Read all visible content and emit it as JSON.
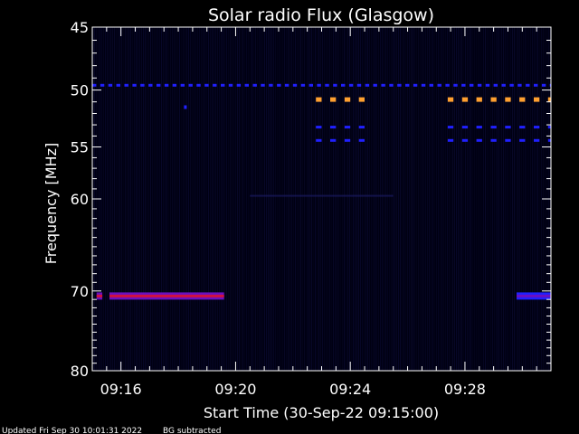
{
  "chart_data": {
    "type": "heatmap",
    "title": "Solar radio Flux (Glasgow)",
    "xlabel": "Start Time (30-Sep-22 09:15:00)",
    "ylabel": "Frequency [MHz]",
    "x_range_minutes_after_start": [
      0,
      16
    ],
    "y_range_mhz": [
      45,
      80
    ],
    "y_scale": "log",
    "x_ticks": [
      {
        "label": "09:16",
        "minute": 1
      },
      {
        "label": "09:20",
        "minute": 5
      },
      {
        "label": "09:24",
        "minute": 9
      },
      {
        "label": "09:28",
        "minute": 13
      }
    ],
    "y_ticks": [
      45,
      50,
      55,
      60,
      70,
      80
    ],
    "colors": {
      "background": "#000012",
      "blue": "#2020ff",
      "orange": "#ffa030",
      "red": "#d01040",
      "purple": "#6a10c0",
      "noise": "#0d0d3a"
    },
    "features": [
      {
        "kind": "dashed",
        "color": "blue",
        "freq": 49.6,
        "x0": 0,
        "x1": 16,
        "dash_min": 0.14,
        "gap_min": 0.14
      },
      {
        "kind": "dashed",
        "color": "orange",
        "freq": 50.8,
        "x0": 7.8,
        "x1": 9.8,
        "dash_min": 0.2,
        "gap_min": 0.3
      },
      {
        "kind": "dashed",
        "color": "orange",
        "freq": 50.8,
        "x0": 12.4,
        "x1": 16,
        "dash_min": 0.2,
        "gap_min": 0.3
      },
      {
        "kind": "dashed",
        "color": "blue",
        "freq": 53.2,
        "x0": 7.8,
        "x1": 9.8,
        "dash_min": 0.2,
        "gap_min": 0.3
      },
      {
        "kind": "dashed",
        "color": "blue",
        "freq": 53.2,
        "x0": 12.4,
        "x1": 16,
        "dash_min": 0.2,
        "gap_min": 0.3
      },
      {
        "kind": "dashed",
        "color": "blue",
        "freq": 54.4,
        "x0": 7.8,
        "x1": 9.8,
        "dash_min": 0.2,
        "gap_min": 0.3
      },
      {
        "kind": "dashed",
        "color": "blue",
        "freq": 54.4,
        "x0": 12.4,
        "x1": 16,
        "dash_min": 0.2,
        "gap_min": 0.3
      },
      {
        "kind": "bar",
        "color": "red",
        "edge": "purple",
        "freq": 70.6,
        "x0": 0.15,
        "x1": 0.35
      },
      {
        "kind": "bar",
        "color": "red",
        "edge": "purple",
        "freq": 70.6,
        "x0": 0.6,
        "x1": 4.6
      },
      {
        "kind": "bar",
        "color": "purple",
        "edge": "blue",
        "freq": 70.6,
        "x0": 14.8,
        "x1": 16
      }
    ]
  },
  "footer": {
    "updated": "Updated Fri Sep 30 10:01:31 2022",
    "note": "BG subtracted"
  }
}
